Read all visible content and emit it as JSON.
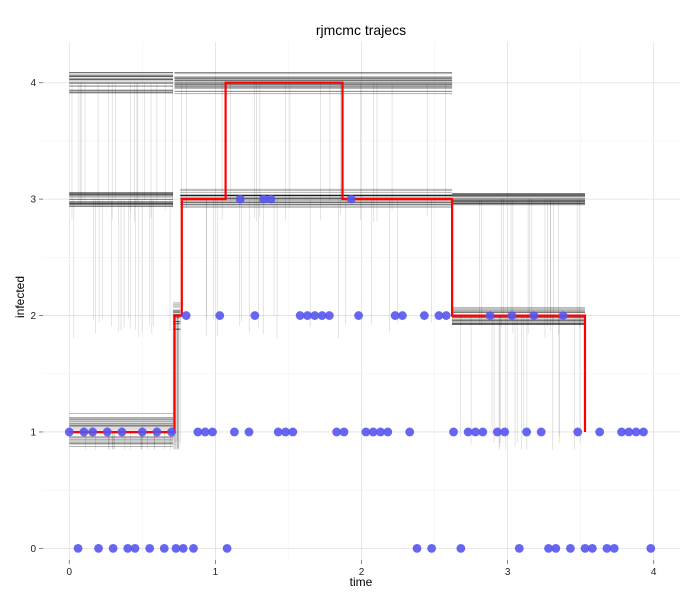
{
  "chart_data": {
    "type": "scatter",
    "title": "rjmcmc trajecs",
    "xlabel": "time",
    "ylabel": "infected",
    "xlim": [
      -0.18,
      4.18
    ],
    "ylim": [
      -0.1,
      4.35
    ],
    "xticks": [
      0,
      1,
      2,
      3,
      4
    ],
    "yticks": [
      0,
      1,
      2,
      3,
      4
    ],
    "grid": true,
    "background": "#ffffff",
    "colors": {
      "trajectories": "#000000",
      "map_trajectory": "#ff0000",
      "observations": "#5555ee"
    },
    "map_trajectory": {
      "name": "",
      "steps": [
        [
          0.0,
          1
        ],
        [
          0.72,
          1
        ],
        [
          0.72,
          2
        ],
        [
          0.77,
          2
        ],
        [
          0.77,
          3
        ],
        [
          1.07,
          3
        ],
        [
          1.07,
          4
        ],
        [
          1.87,
          4
        ],
        [
          1.87,
          3
        ],
        [
          2.62,
          3
        ],
        [
          2.62,
          2
        ],
        [
          3.53,
          2
        ],
        [
          3.53,
          1
        ]
      ]
    },
    "trajectory_bands": [
      {
        "x0": 0.0,
        "x1": 0.71,
        "level": 1,
        "spread": 0.16
      },
      {
        "x0": 0.71,
        "x1": 0.76,
        "level": 2,
        "spread": 0.12
      },
      {
        "x0": 0.76,
        "x1": 2.62,
        "level": 3,
        "spread": 0.09
      },
      {
        "x0": 0.72,
        "x1": 2.62,
        "level": 4,
        "spread": 0.1
      },
      {
        "x0": 0.0,
        "x1": 0.71,
        "level": 3,
        "spread": 0.07
      },
      {
        "x0": 0.0,
        "x1": 0.71,
        "level": 4,
        "spread": 0.09
      },
      {
        "x0": 2.62,
        "x1": 3.53,
        "level": 2,
        "spread": 0.08
      },
      {
        "x0": 2.62,
        "x1": 3.53,
        "level": 3,
        "spread": 0.05
      }
    ],
    "observations": [
      {
        "x": 0.0,
        "y": 1
      },
      {
        "x": 0.06,
        "y": 0
      },
      {
        "x": 0.1,
        "y": 1
      },
      {
        "x": 0.16,
        "y": 1
      },
      {
        "x": 0.2,
        "y": 0
      },
      {
        "x": 0.26,
        "y": 1
      },
      {
        "x": 0.3,
        "y": 0
      },
      {
        "x": 0.36,
        "y": 1
      },
      {
        "x": 0.4,
        "y": 0
      },
      {
        "x": 0.45,
        "y": 0
      },
      {
        "x": 0.5,
        "y": 1
      },
      {
        "x": 0.55,
        "y": 0
      },
      {
        "x": 0.6,
        "y": 1
      },
      {
        "x": 0.65,
        "y": 0
      },
      {
        "x": 0.7,
        "y": 1
      },
      {
        "x": 0.73,
        "y": 0
      },
      {
        "x": 0.78,
        "y": 0
      },
      {
        "x": 0.8,
        "y": 2
      },
      {
        "x": 0.85,
        "y": 0
      },
      {
        "x": 0.88,
        "y": 1
      },
      {
        "x": 0.93,
        "y": 1
      },
      {
        "x": 0.98,
        "y": 1
      },
      {
        "x": 1.03,
        "y": 2
      },
      {
        "x": 1.08,
        "y": 0
      },
      {
        "x": 1.13,
        "y": 1
      },
      {
        "x": 1.17,
        "y": 3
      },
      {
        "x": 1.23,
        "y": 1
      },
      {
        "x": 1.27,
        "y": 2
      },
      {
        "x": 1.33,
        "y": 3
      },
      {
        "x": 1.38,
        "y": 3
      },
      {
        "x": 1.43,
        "y": 1
      },
      {
        "x": 1.48,
        "y": 1
      },
      {
        "x": 1.53,
        "y": 1
      },
      {
        "x": 1.58,
        "y": 2
      },
      {
        "x": 1.63,
        "y": 2
      },
      {
        "x": 1.68,
        "y": 2
      },
      {
        "x": 1.73,
        "y": 2
      },
      {
        "x": 1.78,
        "y": 2
      },
      {
        "x": 1.83,
        "y": 1
      },
      {
        "x": 1.88,
        "y": 1
      },
      {
        "x": 1.93,
        "y": 3
      },
      {
        "x": 1.98,
        "y": 2
      },
      {
        "x": 2.03,
        "y": 1
      },
      {
        "x": 2.08,
        "y": 1
      },
      {
        "x": 2.13,
        "y": 1
      },
      {
        "x": 2.18,
        "y": 1
      },
      {
        "x": 2.23,
        "y": 2
      },
      {
        "x": 2.28,
        "y": 2
      },
      {
        "x": 2.33,
        "y": 1
      },
      {
        "x": 2.38,
        "y": 0
      },
      {
        "x": 2.43,
        "y": 2
      },
      {
        "x": 2.48,
        "y": 0
      },
      {
        "x": 2.53,
        "y": 2
      },
      {
        "x": 2.58,
        "y": 2
      },
      {
        "x": 2.63,
        "y": 1
      },
      {
        "x": 2.68,
        "y": 0
      },
      {
        "x": 2.73,
        "y": 1
      },
      {
        "x": 2.78,
        "y": 1
      },
      {
        "x": 2.83,
        "y": 1
      },
      {
        "x": 2.88,
        "y": 2
      },
      {
        "x": 2.93,
        "y": 1
      },
      {
        "x": 2.98,
        "y": 1
      },
      {
        "x": 3.03,
        "y": 2
      },
      {
        "x": 3.08,
        "y": 0
      },
      {
        "x": 3.13,
        "y": 1
      },
      {
        "x": 3.18,
        "y": 2
      },
      {
        "x": 3.23,
        "y": 1
      },
      {
        "x": 3.28,
        "y": 0
      },
      {
        "x": 3.33,
        "y": 0
      },
      {
        "x": 3.38,
        "y": 2
      },
      {
        "x": 3.43,
        "y": 0
      },
      {
        "x": 3.48,
        "y": 1
      },
      {
        "x": 3.53,
        "y": 0
      },
      {
        "x": 3.58,
        "y": 0
      },
      {
        "x": 3.63,
        "y": 1
      },
      {
        "x": 3.68,
        "y": 0
      },
      {
        "x": 3.73,
        "y": 0
      },
      {
        "x": 3.78,
        "y": 1
      },
      {
        "x": 3.83,
        "y": 1
      },
      {
        "x": 3.88,
        "y": 1
      },
      {
        "x": 3.93,
        "y": 1
      },
      {
        "x": 3.98,
        "y": 0
      }
    ]
  }
}
